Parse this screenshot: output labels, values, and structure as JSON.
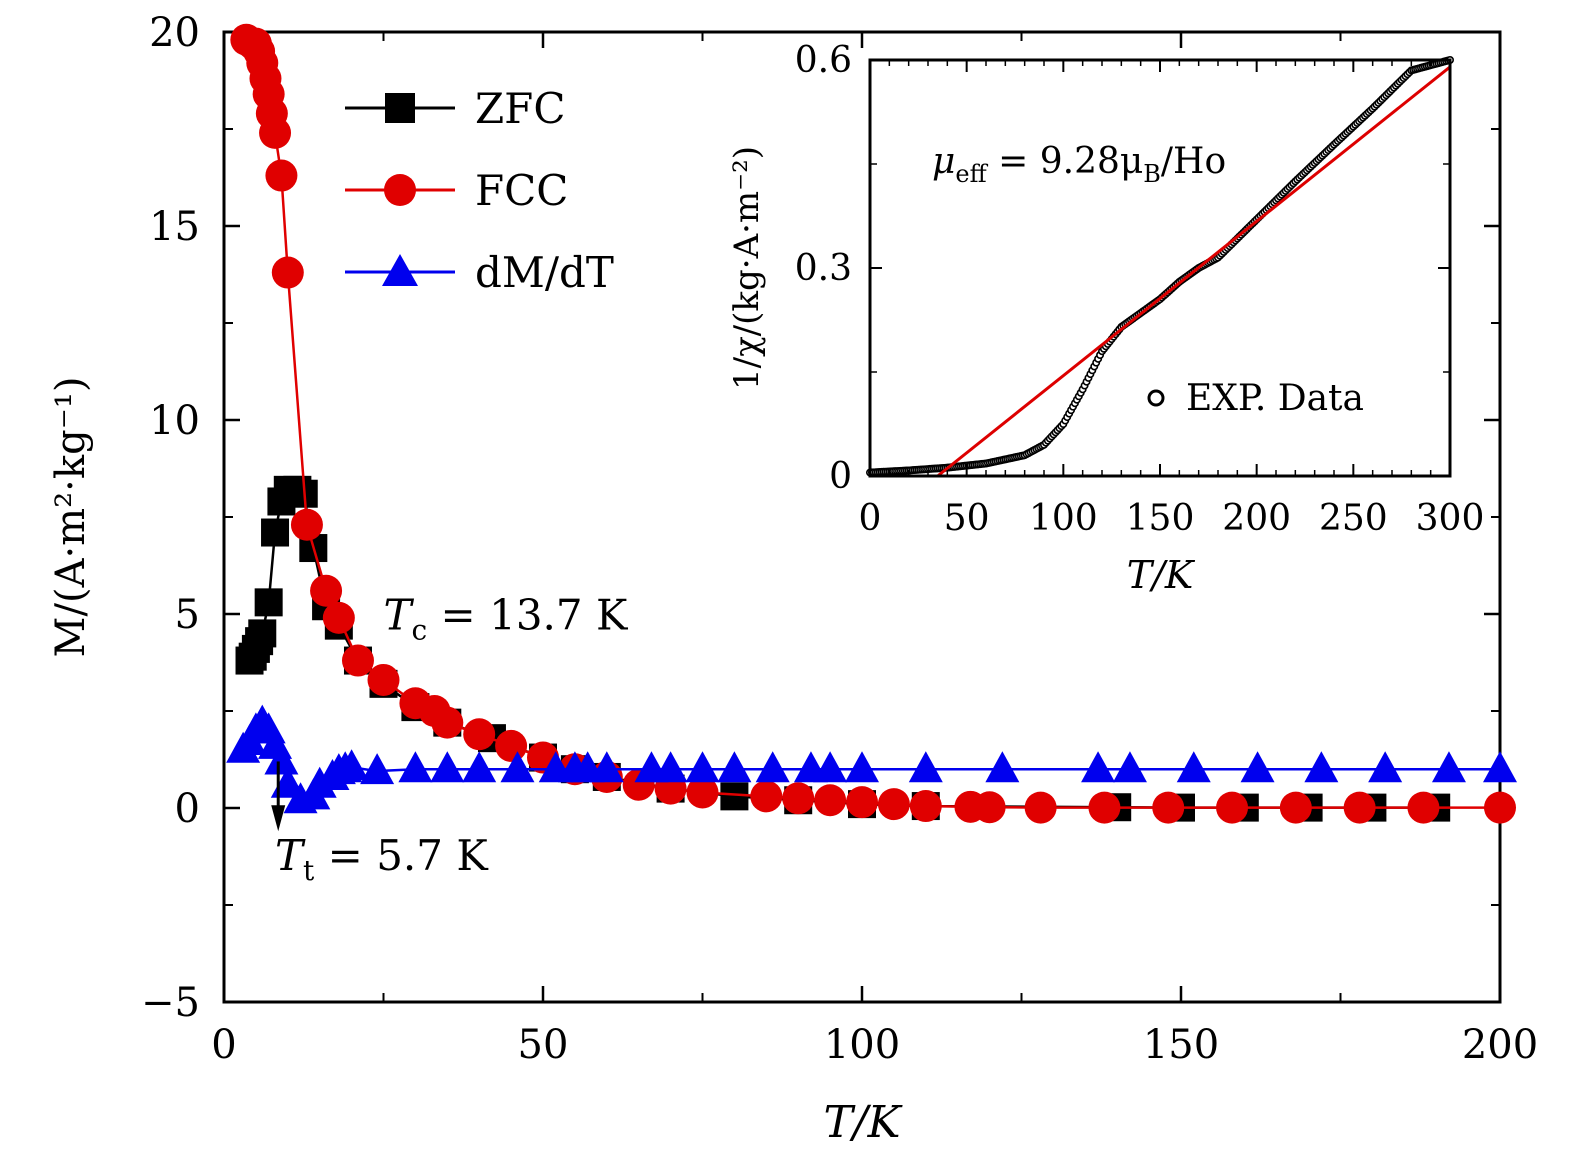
{
  "chart_data": [
    {
      "type": "line",
      "role": "main",
      "xlabel": "T/K",
      "ylabel": "M/(A·m²·kg⁻¹)",
      "xlim": [
        0,
        200
      ],
      "ylim": [
        -5,
        20
      ],
      "xticks": [
        "0",
        "50",
        "100",
        "150",
        "200"
      ],
      "yticks": [
        "−5",
        "0",
        "5",
        "10",
        "15",
        "20"
      ],
      "xtick_values": [
        0,
        50,
        100,
        150,
        200
      ],
      "ytick_values": [
        -5,
        0,
        5,
        10,
        15,
        20
      ],
      "grid": false,
      "legend_position": "top-left",
      "series": [
        {
          "name": "ZFC",
          "color": "#000000",
          "marker": "square",
          "x": [
            4,
            4.5,
            5,
            5.5,
            6,
            7,
            8,
            9,
            10,
            11.5,
            12.5,
            14,
            16,
            18,
            21,
            25,
            30,
            35,
            42,
            50,
            55,
            60,
            70,
            80,
            90,
            100,
            110,
            140,
            150,
            160,
            170,
            180,
            190
          ],
          "y": [
            3.8,
            3.9,
            4.1,
            4.3,
            4.5,
            5.3,
            7.1,
            7.9,
            8.2,
            8.2,
            8.1,
            6.7,
            5.2,
            4.7,
            3.8,
            3.2,
            2.6,
            2.2,
            1.8,
            1.3,
            1.0,
            0.8,
            0.5,
            0.3,
            0.2,
            0.1,
            0.05,
            0.02,
            0.01,
            0.01,
            0.01,
            0.01,
            0.01
          ]
        },
        {
          "name": "FCC",
          "color": "#e00000",
          "marker": "circle",
          "x": [
            3.5,
            4.5,
            5,
            5.5,
            6,
            6.5,
            7,
            7.5,
            8,
            9,
            10,
            13,
            16,
            18,
            21,
            25,
            30,
            33,
            35,
            40,
            45,
            50,
            55,
            60,
            65,
            70,
            75,
            85,
            90,
            95,
            100,
            105,
            110,
            117,
            120,
            128,
            138,
            148,
            158,
            168,
            178,
            188,
            200
          ],
          "y": [
            19.8,
            19.7,
            19.7,
            19.5,
            19.2,
            18.8,
            18.4,
            17.9,
            17.4,
            16.3,
            13.8,
            7.3,
            5.6,
            4.9,
            3.8,
            3.3,
            2.7,
            2.5,
            2.2,
            1.9,
            1.6,
            1.3,
            1.0,
            0.8,
            0.6,
            0.5,
            0.4,
            0.3,
            0.25,
            0.2,
            0.15,
            0.1,
            0.05,
            0.03,
            0.02,
            0.01,
            0.01,
            0.01,
            0.01,
            0.01,
            0.01,
            0.01,
            0.01
          ]
        },
        {
          "name": "dM/dT",
          "color": "#0000ee",
          "marker": "triangle",
          "x": [
            3,
            4,
            5,
            6,
            7,
            8,
            9,
            10,
            12,
            14,
            15,
            17,
            18,
            19,
            20,
            24,
            30,
            35,
            40,
            46,
            52,
            55,
            57,
            60,
            67,
            70,
            75,
            80,
            86,
            92,
            95,
            100,
            110,
            122,
            137,
            142,
            152,
            162,
            172,
            182,
            192,
            200
          ],
          "y": [
            1.5,
            1.7,
            2.0,
            2.2,
            2.0,
            1.6,
            1.2,
            0.6,
            0.2,
            0.3,
            0.6,
            0.8,
            0.95,
            1.0,
            1.05,
            0.95,
            1.0,
            1.0,
            1.0,
            1.0,
            1.0,
            1.0,
            1.0,
            1.0,
            1.0,
            1.0,
            1.0,
            1.0,
            1.0,
            1.0,
            1.0,
            1.0,
            1.0,
            1.0,
            1.0,
            1.0,
            1.0,
            1.0,
            1.0,
            1.0,
            1.0,
            1.0
          ]
        }
      ],
      "annotations": [
        {
          "text": "Tc = 13.7 K",
          "sym": "T",
          "sub": "c",
          "rest": " = 13.7 K",
          "x": 25,
          "y": 4.6
        },
        {
          "text": "Tt = 5.7 K",
          "sym": "T",
          "sub": "t",
          "rest": " = 5.7 K",
          "x": 8,
          "y": -1.6
        }
      ],
      "arrow": {
        "x": 8.5,
        "y_from": 1.2,
        "y_to": -0.6
      }
    },
    {
      "type": "scatter",
      "role": "inset",
      "xlabel": "T/K",
      "ylabel": "1/χ/(kg·A·m⁻²)",
      "xlim": [
        0,
        300
      ],
      "ylim": [
        0,
        0.6
      ],
      "xticks": [
        "0",
        "50",
        "100",
        "150",
        "200",
        "250",
        "300"
      ],
      "yticks": [
        "0",
        "0.3",
        "0.6"
      ],
      "xtick_values": [
        0,
        50,
        100,
        150,
        200,
        250,
        300
      ],
      "ytick_values": [
        0,
        0.3,
        0.6
      ],
      "annotation": {
        "text": "μeff = 9.28μB/Ho",
        "pre": "μ",
        "sub1": "eff",
        "mid": " = 9.28μ",
        "sub2": "B",
        "post": "/Ho"
      },
      "legend_position": "lower-right",
      "series": [
        {
          "name": "EXP. Data",
          "color": "#000000",
          "marker": "open-circle",
          "x": [
            0,
            20,
            40,
            60,
            80,
            90,
            100,
            110,
            120,
            130,
            140,
            150,
            160,
            170,
            180,
            200,
            220,
            240,
            260,
            280,
            300
          ],
          "y": [
            0.005,
            0.008,
            0.012,
            0.018,
            0.03,
            0.045,
            0.075,
            0.125,
            0.18,
            0.215,
            0.235,
            0.255,
            0.28,
            0.3,
            0.315,
            0.37,
            0.425,
            0.478,
            0.53,
            0.585,
            0.6
          ]
        },
        {
          "name": "",
          "color": "#dd0000",
          "marker": "none",
          "x": [
            35,
            300
          ],
          "y": [
            0,
            0.59
          ]
        }
      ]
    }
  ]
}
